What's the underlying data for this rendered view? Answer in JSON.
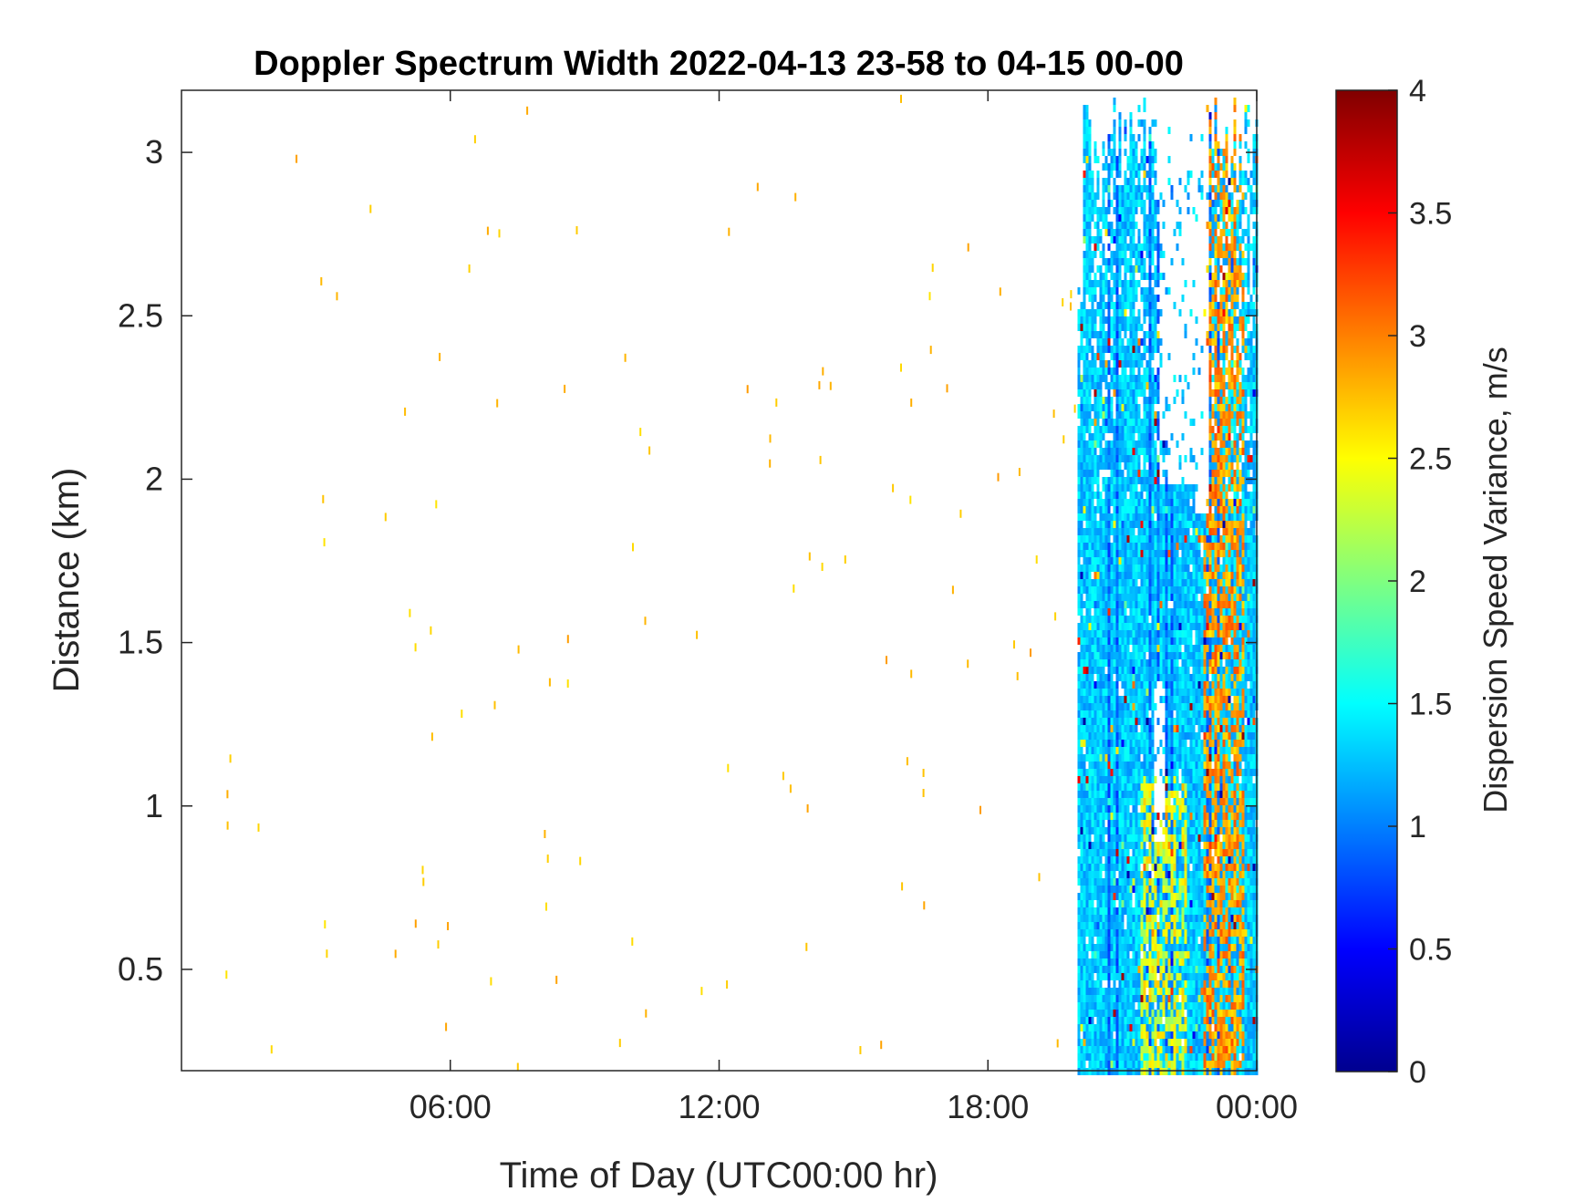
{
  "chart_data": {
    "type": "heatmap",
    "title": "Doppler Spectrum Width 2022-04-13 23-58 to 04-15 00-00",
    "xlabel": "Time of Day (UTC00:00 hr)",
    "ylabel": "Distance (km)",
    "xlim": [
      0,
      24
    ],
    "ylim": [
      0.19,
      3.19
    ],
    "xticks": [
      {
        "value": 6,
        "label": "06:00"
      },
      {
        "value": 12,
        "label": "12:00"
      },
      {
        "value": 18,
        "label": "18:00"
      },
      {
        "value": 24,
        "label": "00:00"
      }
    ],
    "yticks": [
      {
        "value": 0.5,
        "label": "0.5"
      },
      {
        "value": 1,
        "label": "1"
      },
      {
        "value": 1.5,
        "label": "1.5"
      },
      {
        "value": 2,
        "label": "2"
      },
      {
        "value": 2.5,
        "label": "2.5"
      },
      {
        "value": 3,
        "label": "3"
      }
    ],
    "colorbar": {
      "label": "Dispersion Speed Variance, m/s",
      "colormap": "jet",
      "clim": [
        0,
        4
      ],
      "ticks": [
        {
          "value": 0,
          "label": "0"
        },
        {
          "value": 0.5,
          "label": "0.5"
        },
        {
          "value": 1,
          "label": "1"
        },
        {
          "value": 1.5,
          "label": "1.5"
        },
        {
          "value": 2,
          "label": "2"
        },
        {
          "value": 2.5,
          "label": "2.5"
        },
        {
          "value": 3,
          "label": "3"
        },
        {
          "value": 3.5,
          "label": "3.5"
        },
        {
          "value": 4,
          "label": "4"
        }
      ]
    },
    "dense_region": {
      "x_start": 20.0,
      "x_end": 24.0,
      "typical_value": 1.3,
      "high_band": {
        "x_start": 22.8,
        "x_end": 23.7,
        "value": 2.9
      },
      "mid_band_low_altitude": {
        "x_start": 21.4,
        "x_end": 22.4,
        "y_max": 1.1,
        "value": 2.4
      }
    },
    "sparse_points": {
      "x_range": [
        0.9,
        20.0
      ],
      "count": 120,
      "value": 2.9
    },
    "grid": false
  }
}
